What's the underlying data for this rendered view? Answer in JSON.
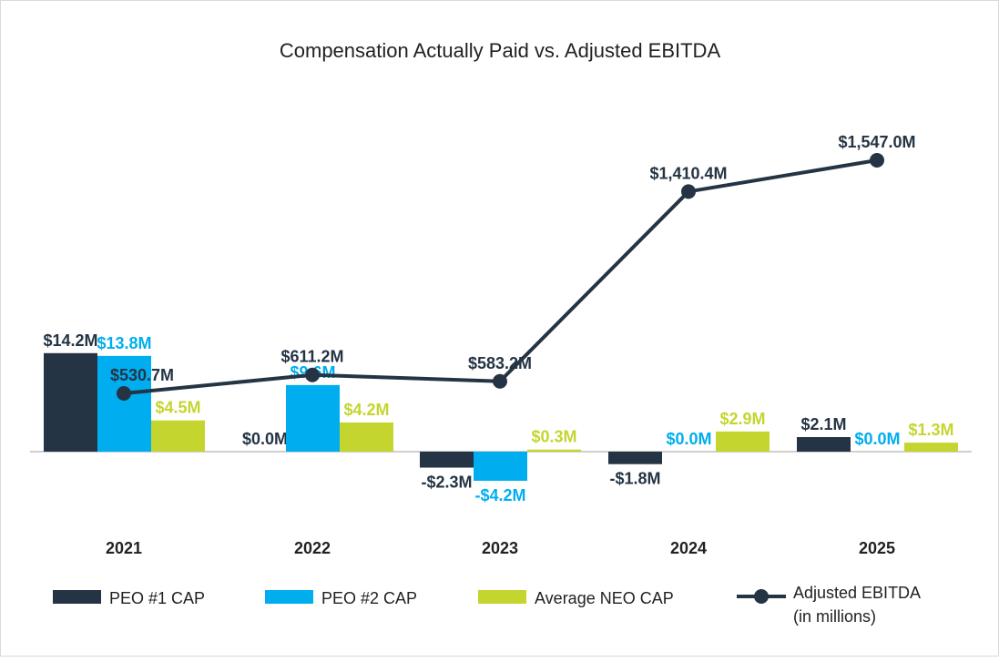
{
  "chart_data": {
    "type": "bar",
    "title": "Compensation Actually Paid vs. Adjusted EBITDA",
    "categories": [
      "2021",
      "2022",
      "2023",
      "2024",
      "2025"
    ],
    "series": [
      {
        "name": "PEO #1 CAP",
        "kind": "bar",
        "color": "#243444",
        "values": [
          14.2,
          0.0,
          -2.3,
          -1.8,
          2.1
        ],
        "labels": [
          "$14.2M",
          "$0.0M",
          "-$2.3M",
          "-$1.8M",
          "$2.1M"
        ]
      },
      {
        "name": "PEO #2 CAP",
        "kind": "bar",
        "color": "#00AEEF",
        "values": [
          13.8,
          9.6,
          -4.2,
          0.0,
          0.0
        ],
        "labels": [
          "$13.8M",
          "$9.6M",
          "-$4.2M",
          "$0.0M",
          "$0.0M"
        ]
      },
      {
        "name": "Average NEO CAP",
        "kind": "bar",
        "color": "#C5D52F",
        "values": [
          4.5,
          4.2,
          0.3,
          2.9,
          1.3
        ],
        "labels": [
          "$4.5M",
          "$4.2M",
          "$0.3M",
          "$2.9M",
          "$1.3M"
        ]
      },
      {
        "name": "Adjusted EBITDA",
        "name2": "(in millions)",
        "kind": "line",
        "color": "#243444",
        "values": [
          530.7,
          611.2,
          583.2,
          1410.4,
          1547.0
        ],
        "labels": [
          "$530.7M",
          "$611.2M",
          "$583.2M",
          "$1,410.4M",
          "$1,547.0M"
        ]
      }
    ],
    "legend": "bottom",
    "grid": false
  }
}
